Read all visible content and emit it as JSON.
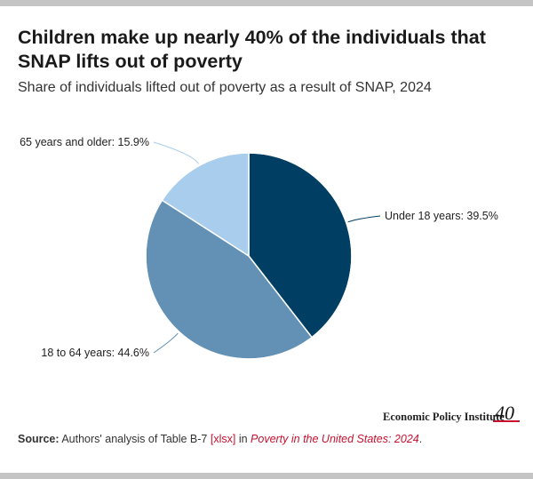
{
  "title": "Children make up nearly 40% of the individuals that SNAP lifts out of poverty",
  "subtitle": "Share of individuals lifted out of poverty as a result of SNAP, 2024",
  "chart_data": {
    "type": "pie",
    "title": "",
    "slices": [
      {
        "label": "Under 18 years",
        "value": 39.5,
        "display": "Under 18 years: 39.5%",
        "color": "#003f63"
      },
      {
        "label": "18 to 64 years",
        "value": 44.6,
        "display": "18 to 64 years: 44.6%",
        "color": "#6291b5"
      },
      {
        "label": "65 years and older",
        "value": 15.9,
        "display": "65 years and older: 15.9%",
        "color": "#a9cdec"
      }
    ]
  },
  "logo": {
    "text": "Economic Policy Institute",
    "mark": "40"
  },
  "source": {
    "label": "Source:",
    "text1": " Authors' analysis of Table B-7 ",
    "link": "[xlsx]",
    "text2": " in ",
    "italic": "Poverty in the United States: 2024",
    "end": "."
  }
}
